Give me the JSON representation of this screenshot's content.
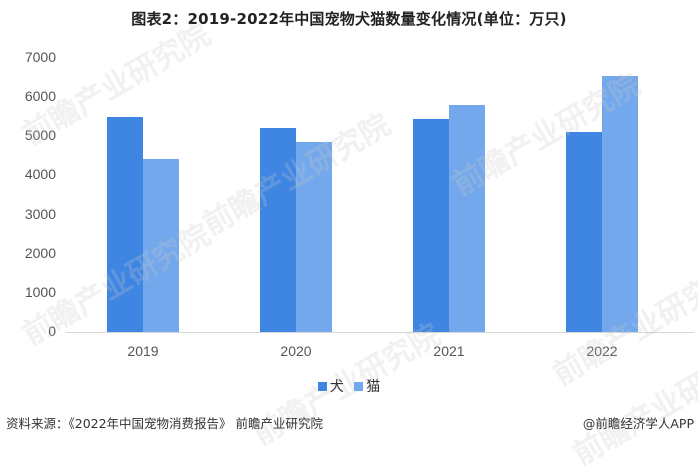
{
  "title": "图表2：2019-2022年中国宠物犬猫数量变化情况(单位：万只)",
  "chart_data": {
    "type": "bar",
    "title": "图表2：2019-2022年中国宠物犬猫数量变化情况(单位：万只)",
    "xlabel": "",
    "ylabel": "万只",
    "categories": [
      "2019",
      "2020",
      "2021",
      "2022"
    ],
    "series": [
      {
        "name": "犬",
        "color": "#3f86e3",
        "values": [
          5503,
          5222,
          5429,
          5119
        ]
      },
      {
        "name": "猫",
        "color": "#74a8ec",
        "values": [
          4412,
          4862,
          5806,
          6536
        ]
      }
    ],
    "ylim": [
      0,
      7000
    ],
    "yticks": [
      "0",
      "1000",
      "2000",
      "3000",
      "4000",
      "5000",
      "6000",
      "7000"
    ],
    "grid": false,
    "legend_position": "bottom"
  },
  "legend": [
    {
      "label": "犬",
      "color": "#3f86e3"
    },
    {
      "label": "猫",
      "color": "#74a8ec"
    }
  ],
  "footer": {
    "source": "资料来源：《2022年中国宠物消费报告》 前瞻产业研究院",
    "credit": "@前瞻经济学人APP"
  },
  "watermark": "前瞻产业研究院"
}
